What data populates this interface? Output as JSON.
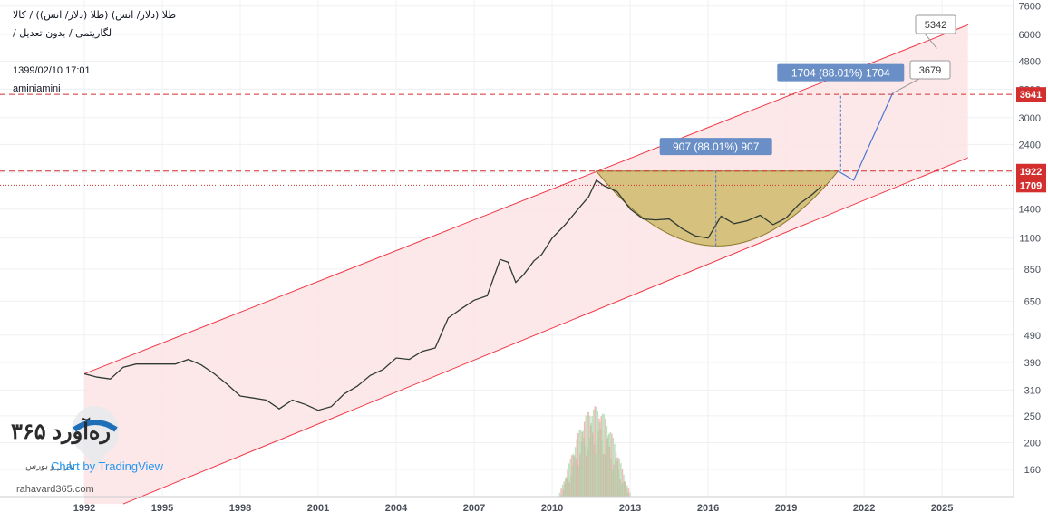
{
  "header": {
    "title": "طلا (دلار/ انس) (طلا (دلار/ انس)) / کالا",
    "subtitle": "لگاریتمی / بدون تعدیل /",
    "timestamp": "1399/02/10 17:01",
    "author": "aminiamini"
  },
  "watermark": {
    "brand": "ره‌آورد ۳۶۵",
    "brand_sub": "بازار و بورس",
    "tv_text": "Chart by TradingView",
    "url": "rahavard365.com"
  },
  "colors": {
    "channel_line": "#f23645",
    "channel_fill": "#fde2e4",
    "price_line": "#2f3b32",
    "cup_fill": "#c8b45a",
    "projection": "#4a76d1",
    "label_bg": "#6a8fc6",
    "level_red": "#d32f2f",
    "volume_green": "#a5d6a7",
    "volume_red": "#ef9a9a"
  },
  "chart_data": {
    "type": "line",
    "scale": "log",
    "grid": true,
    "ylim": [
      120,
      7600
    ],
    "xlim": [
      1991.0,
      2028.0
    ],
    "y_ticks": [
      7600,
      6000,
      4800,
      3800,
      3000,
      2400,
      1900,
      1400,
      1100,
      850,
      650,
      490,
      390,
      310,
      250,
      200,
      160
    ],
    "x_ticks": [
      "1992",
      "1995",
      "1998",
      "2001",
      "2004",
      "2007",
      "2010",
      "2013",
      "2016",
      "2019",
      "2022",
      "2025"
    ],
    "x_tick_values": [
      1992,
      1995,
      1998,
      2001,
      2004,
      2007,
      2010,
      2013,
      2016,
      2019,
      2022,
      2025
    ],
    "series": [
      {
        "values_x": [
          1992.0,
          1992.5,
          1993.0,
          1993.5,
          1994.0,
          1994.5,
          1995.0,
          1995.5,
          1996.0,
          1996.5,
          1997.0,
          1997.5,
          1998.0,
          1998.5,
          1999.0,
          1999.5,
          2000.0,
          2000.5,
          2001.0,
          2001.5,
          2002.0,
          2002.5,
          2003.0,
          2003.5,
          2004.0,
          2004.5,
          2005.0,
          2005.5,
          2006.0,
          2006.5,
          2007.0,
          2007.5,
          2008.0,
          2008.3,
          2008.6,
          2008.9,
          2009.3,
          2009.6,
          2010.0,
          2010.5,
          2011.0,
          2011.4,
          2011.7,
          2012.0,
          2012.5,
          2013.0,
          2013.5,
          2014.0,
          2014.5,
          2015.0,
          2015.5,
          2016.0,
          2016.5,
          2017.0,
          2017.5,
          2018.0,
          2018.5,
          2019.0,
          2019.5,
          2020.0,
          2020.35
        ],
        "values_y": [
          355,
          345,
          340,
          375,
          385,
          385,
          385,
          385,
          400,
          382,
          355,
          325,
          295,
          290,
          285,
          265,
          285,
          275,
          262,
          270,
          300,
          320,
          350,
          368,
          405,
          400,
          428,
          440,
          565,
          610,
          655,
          680,
          920,
          900,
          760,
          810,
          910,
          960,
          1100,
          1230,
          1400,
          1550,
          1780,
          1700,
          1620,
          1400,
          1290,
          1280,
          1290,
          1190,
          1120,
          1100,
          1320,
          1240,
          1270,
          1330,
          1230,
          1300,
          1460,
          1580,
          1690
        ]
      }
    ],
    "annotations": {
      "levels": [
        {
          "value": 3641,
          "label": "3641",
          "style": "dashed"
        },
        {
          "value": 1922,
          "label": "1922",
          "style": "dashed"
        },
        {
          "value": 1709,
          "label": "1709",
          "style": "dotted"
        }
      ],
      "measures": [
        {
          "label": "907 (88.01%) 907"
        },
        {
          "label": "1704 (88.01%) 1704"
        }
      ],
      "callouts": [
        {
          "label": "5342"
        },
        {
          "label": "3679"
        }
      ]
    }
  }
}
